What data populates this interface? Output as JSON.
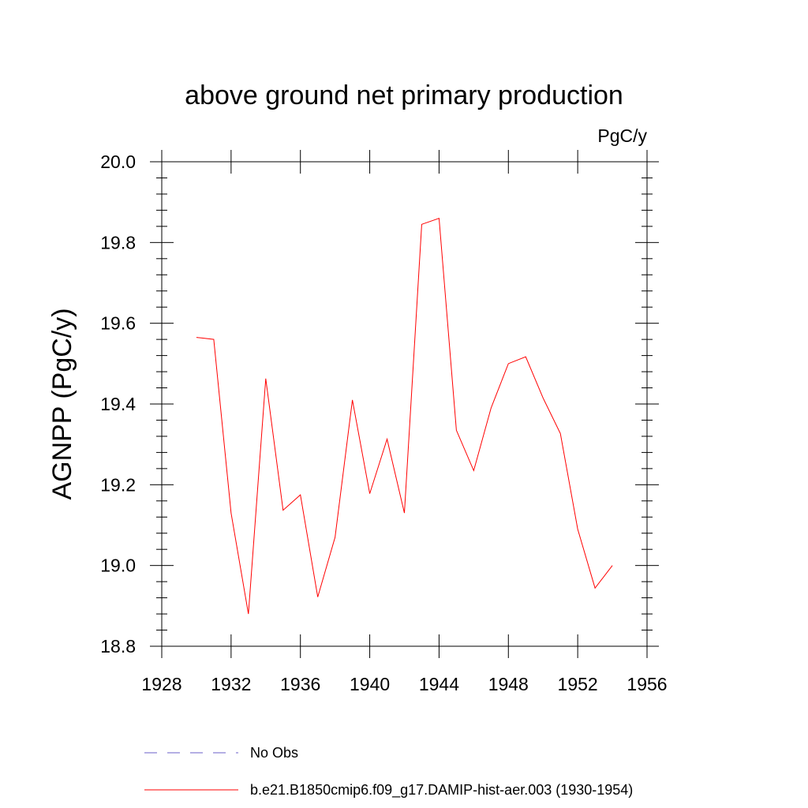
{
  "chart_data": {
    "type": "line",
    "title": "above ground net primary production",
    "units_label": "PgC/y",
    "ylabel": "AGNPP  (PgC/y)",
    "xlabel": "",
    "xlim": [
      1928,
      1956
    ],
    "ylim": [
      18.8,
      20.0
    ],
    "x_ticks": [
      1928,
      1932,
      1936,
      1940,
      1944,
      1948,
      1952,
      1956
    ],
    "x_tick_labels": [
      "1928",
      "1932",
      "1936",
      "1940",
      "1944",
      "1948",
      "1952",
      "1956"
    ],
    "y_ticks": [
      18.8,
      19.0,
      19.2,
      19.4,
      19.6,
      19.8,
      20.0
    ],
    "y_tick_labels": [
      "18.8",
      "19.0",
      "19.2",
      "19.4",
      "19.6",
      "19.8",
      "20.0"
    ],
    "grid": false,
    "legend_position": "bottom",
    "series": [
      {
        "name": "b.e21.B1850cmip6.f09_g17.DAMIP-hist-aer.003 (1930-1954)",
        "color": "#ff0000",
        "dash": "solid",
        "x": [
          1930,
          1931,
          1932,
          1933,
          1934,
          1935,
          1936,
          1937,
          1938,
          1939,
          1940,
          1941,
          1942,
          1943,
          1944,
          1945,
          1946,
          1947,
          1948,
          1949,
          1950,
          1951,
          1952,
          1953,
          1954
        ],
        "values": [
          19.565,
          19.56,
          19.13,
          18.88,
          19.463,
          19.137,
          19.175,
          18.922,
          19.07,
          19.41,
          19.178,
          19.313,
          19.13,
          19.845,
          19.86,
          19.335,
          19.235,
          19.39,
          19.5,
          19.517,
          19.415,
          19.327,
          19.09,
          18.944,
          19.0
        ]
      }
    ],
    "legend": [
      {
        "label": "No Obs",
        "color": "#6b5fc9",
        "dash": "dashed"
      },
      {
        "label": "b.e21.B1850cmip6.f09_g17.DAMIP-hist-aer.003 (1930-1954)",
        "color": "#ff0000",
        "dash": "solid"
      }
    ]
  }
}
